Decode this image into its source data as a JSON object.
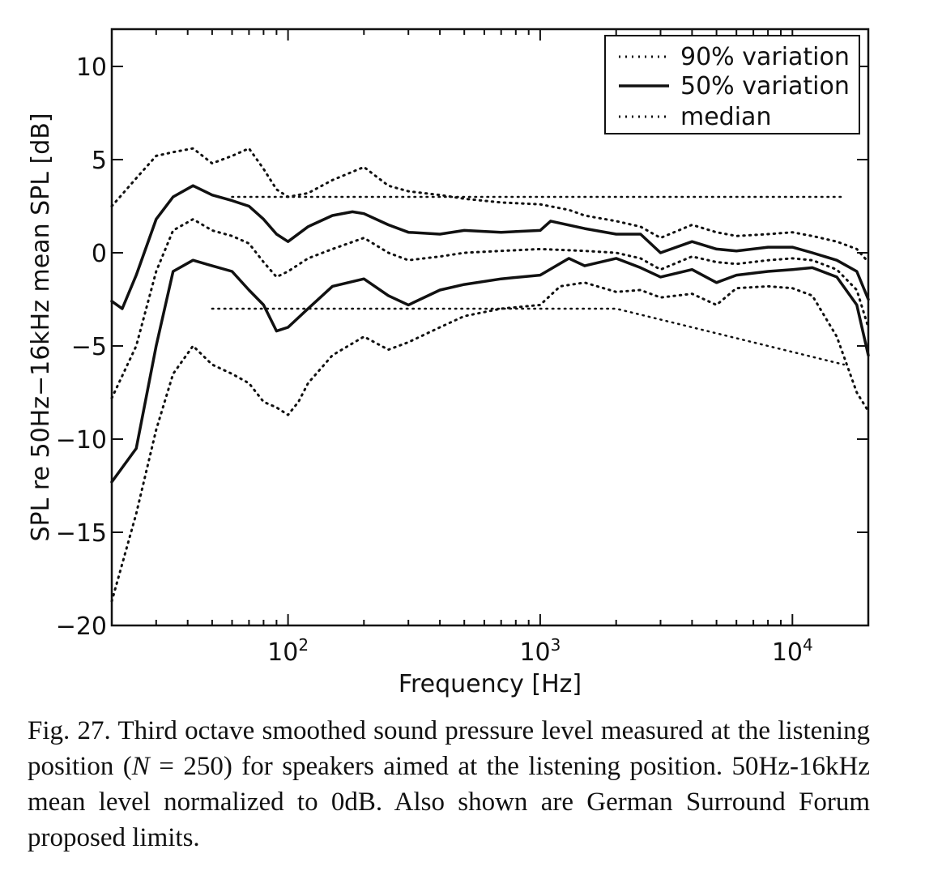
{
  "chart_data": {
    "type": "line",
    "xscale": "log",
    "xlim": [
      20,
      20000
    ],
    "ylim": [
      -20,
      12
    ],
    "xlabel": "Frequency [Hz]",
    "ylabel": "SPL re 50Hz−16kHz mean SPL [dB]",
    "x_ticks": [
      {
        "value": 100,
        "base": "10",
        "exp": "2"
      },
      {
        "value": 1000,
        "base": "10",
        "exp": "3"
      },
      {
        "value": 10000,
        "base": "10",
        "exp": "4"
      }
    ],
    "y_ticks": [
      {
        "value": 10,
        "label": "10"
      },
      {
        "value": 5,
        "label": "5"
      },
      {
        "value": 0,
        "label": "0"
      },
      {
        "value": -5,
        "label": "−5"
      },
      {
        "value": -10,
        "label": "−10"
      },
      {
        "value": -15,
        "label": "−15"
      },
      {
        "value": -20,
        "label": "−20"
      }
    ],
    "legend": {
      "placement": "top-right",
      "entries": [
        {
          "label": "90% variation",
          "style": "dotted"
        },
        {
          "label": "50% variation",
          "style": "solid"
        },
        {
          "label": "median",
          "style": "dotted"
        }
      ]
    },
    "series": [
      {
        "name": "90% variation",
        "style": "dotted",
        "role": "upper",
        "x": [
          20,
          25,
          30,
          35,
          42,
          50,
          60,
          70,
          80,
          90,
          100,
          120,
          150,
          200,
          250,
          300,
          400,
          500,
          700,
          1000,
          1300,
          1500,
          2000,
          2500,
          3000,
          4000,
          5000,
          6000,
          8000,
          10000,
          12000,
          15000,
          18000,
          20000
        ],
        "y": [
          2.5,
          4.0,
          5.2,
          5.4,
          5.6,
          4.8,
          5.2,
          5.6,
          4.5,
          3.4,
          3.0,
          3.2,
          3.9,
          4.6,
          3.6,
          3.3,
          3.1,
          2.9,
          2.7,
          2.6,
          2.3,
          2.0,
          1.7,
          1.4,
          0.8,
          1.5,
          1.1,
          0.9,
          1.0,
          1.1,
          0.9,
          0.6,
          0.2,
          -0.5
        ]
      },
      {
        "name": "50% variation",
        "style": "solid",
        "role": "upper",
        "x": [
          20,
          22,
          25,
          30,
          35,
          42,
          50,
          60,
          70,
          80,
          90,
          100,
          120,
          150,
          180,
          200,
          250,
          300,
          400,
          500,
          700,
          1000,
          1100,
          1500,
          2000,
          2500,
          3000,
          4000,
          5000,
          6000,
          8000,
          10000,
          12000,
          15000,
          18000,
          20000
        ],
        "y": [
          -2.6,
          -3.0,
          -1.2,
          1.8,
          3.0,
          3.6,
          3.1,
          2.8,
          2.5,
          1.8,
          1.0,
          0.6,
          1.4,
          2.0,
          2.2,
          2.1,
          1.5,
          1.1,
          1.0,
          1.2,
          1.1,
          1.2,
          1.7,
          1.3,
          1.0,
          1.0,
          0.0,
          0.6,
          0.2,
          0.1,
          0.3,
          0.3,
          0.0,
          -0.4,
          -1.0,
          -2.5
        ]
      },
      {
        "name": "median",
        "style": "dotted",
        "role": "median",
        "x": [
          20,
          25,
          30,
          35,
          42,
          50,
          60,
          70,
          80,
          90,
          100,
          120,
          150,
          200,
          250,
          300,
          400,
          500,
          700,
          1000,
          1500,
          2000,
          2500,
          3000,
          4000,
          5000,
          6000,
          8000,
          10000,
          12000,
          15000,
          18000,
          20000
        ],
        "y": [
          -7.8,
          -5.0,
          -1.0,
          1.2,
          1.8,
          1.2,
          0.9,
          0.5,
          -0.5,
          -1.3,
          -1.0,
          -0.3,
          0.2,
          0.8,
          0.0,
          -0.4,
          -0.2,
          0.0,
          0.1,
          0.2,
          0.1,
          0.0,
          -0.3,
          -0.9,
          -0.2,
          -0.5,
          -0.6,
          -0.4,
          -0.3,
          -0.4,
          -0.9,
          -2.0,
          -4.0
        ]
      },
      {
        "name": "50% variation",
        "style": "solid",
        "role": "lower",
        "x": [
          20,
          25,
          30,
          35,
          42,
          50,
          60,
          70,
          80,
          90,
          100,
          120,
          150,
          200,
          250,
          300,
          400,
          500,
          700,
          1000,
          1300,
          1500,
          2000,
          2500,
          3000,
          4000,
          5000,
          6000,
          8000,
          10000,
          12000,
          15000,
          18000,
          20000
        ],
        "y": [
          -12.3,
          -10.5,
          -5.0,
          -1.0,
          -0.4,
          -0.7,
          -1.0,
          -2.0,
          -2.8,
          -4.2,
          -4.0,
          -3.0,
          -1.8,
          -1.4,
          -2.3,
          -2.8,
          -2.0,
          -1.7,
          -1.4,
          -1.2,
          -0.3,
          -0.7,
          -0.3,
          -0.8,
          -1.3,
          -0.9,
          -1.6,
          -1.2,
          -1.0,
          -0.9,
          -0.8,
          -1.3,
          -2.8,
          -5.5
        ]
      },
      {
        "name": "90% variation",
        "style": "dotted",
        "role": "lower",
        "x": [
          20,
          25,
          30,
          35,
          42,
          50,
          60,
          70,
          80,
          90,
          100,
          110,
          120,
          150,
          200,
          250,
          300,
          400,
          500,
          700,
          1000,
          1200,
          1500,
          2000,
          2500,
          3000,
          4000,
          5000,
          6000,
          8000,
          10000,
          12000,
          15000,
          18000,
          20000
        ],
        "y": [
          -18.7,
          -14.0,
          -9.5,
          -6.5,
          -5.0,
          -6.0,
          -6.5,
          -7.0,
          -8.0,
          -8.3,
          -8.7,
          -8.0,
          -7.0,
          -5.5,
          -4.5,
          -5.2,
          -4.8,
          -4.0,
          -3.4,
          -3.0,
          -2.8,
          -1.8,
          -1.6,
          -2.1,
          -2.0,
          -2.4,
          -2.2,
          -2.8,
          -1.9,
          -1.8,
          -1.9,
          -2.3,
          -4.5,
          -7.5,
          -8.5
        ]
      },
      {
        "name": "German Surround Forum upper limit",
        "style": "dotted",
        "role": "limit",
        "x": [
          60,
          16000
        ],
        "y": [
          3,
          3
        ]
      },
      {
        "name": "German Surround Forum lower limit",
        "style": "dotted",
        "role": "limit",
        "x": [
          50,
          2000,
          16000
        ],
        "y": [
          -3,
          -3,
          -6
        ]
      }
    ]
  },
  "caption": {
    "prefix": "Fig. 27. Third octave smoothed sound pressure level measured at the listening position (",
    "italic": "N",
    "suffix": " = 250) for speakers aimed at the listening position. 50Hz-16kHz mean level normalized to 0dB. Also shown are German Surround Forum proposed limits."
  }
}
